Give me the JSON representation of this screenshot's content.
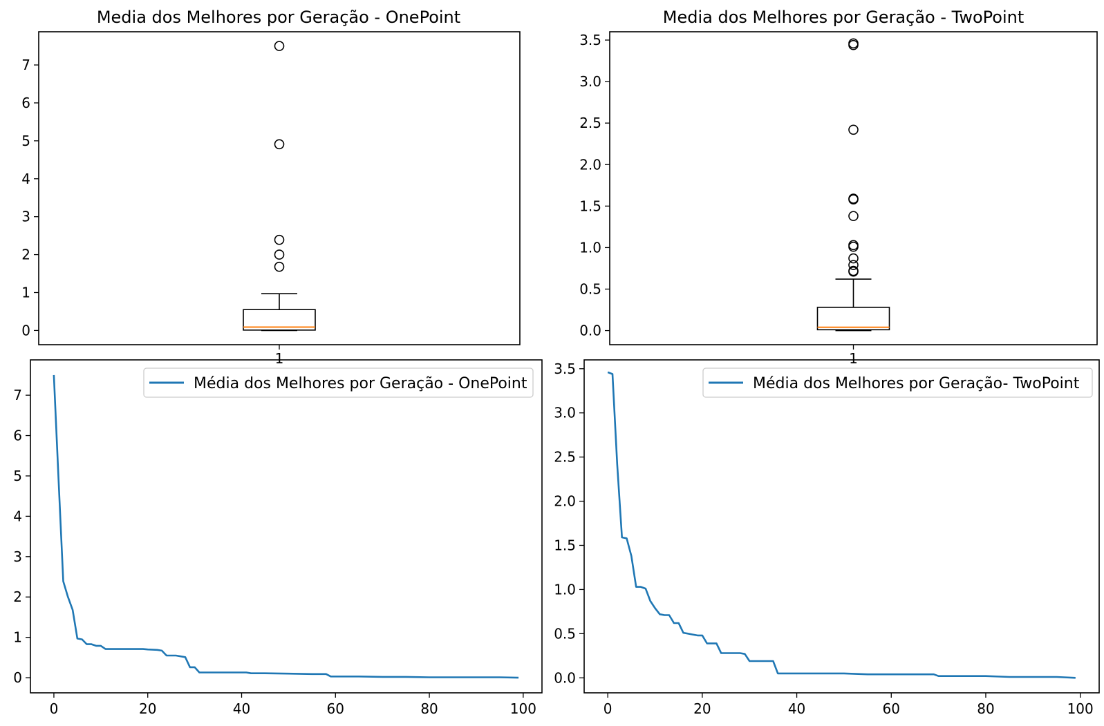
{
  "chart_data": [
    {
      "type": "box",
      "title": "Media dos Melhores por Geração - OnePoint",
      "xlabel": "",
      "ylabel": "",
      "categories": [
        "1"
      ],
      "ylim": [
        -0.375,
        7.875
      ],
      "yticks": [
        0,
        1,
        2,
        3,
        4,
        5,
        6,
        7
      ],
      "ytick_labels": [
        "0",
        "1",
        "2",
        "3",
        "4",
        "5",
        "6",
        "7"
      ],
      "box": {
        "whisker_low": 0.0,
        "q1": 0.01,
        "median": 0.09,
        "q3": 0.55,
        "whisker_high": 0.97
      },
      "outliers": [
        7.5,
        4.91,
        2.39,
        2.0,
        1.68
      ],
      "colors": {
        "box": "#000000",
        "median": "#ff7f0e"
      }
    },
    {
      "type": "box",
      "title": "Media dos Melhores por Geração - TwoPoint",
      "xlabel": "",
      "ylabel": "",
      "categories": [
        "1"
      ],
      "ylim": [
        -0.17,
        3.6
      ],
      "yticks": [
        0.0,
        0.5,
        1.0,
        1.5,
        2.0,
        2.5,
        3.0,
        3.5
      ],
      "ytick_labels": [
        "0.0",
        "0.5",
        "1.0",
        "1.5",
        "2.0",
        "2.5",
        "3.0",
        "3.5"
      ],
      "box": {
        "whisker_low": 0.0,
        "q1": 0.01,
        "median": 0.04,
        "q3": 0.28,
        "whisker_high": 0.62
      },
      "outliers": [
        3.46,
        3.44,
        2.42,
        1.59,
        1.58,
        1.38,
        1.03,
        1.01,
        0.87,
        0.79,
        0.72,
        0.71
      ],
      "colors": {
        "box": "#000000",
        "median": "#ff7f0e"
      }
    },
    {
      "type": "line",
      "title": "",
      "xlabel": "",
      "ylabel": "",
      "xlim": [
        -5,
        104
      ],
      "ylim": [
        -0.375,
        7.875
      ],
      "xticks": [
        0,
        20,
        40,
        60,
        80,
        100
      ],
      "xtick_labels": [
        "0",
        "20",
        "40",
        "60",
        "80",
        "100"
      ],
      "yticks": [
        0,
        1,
        2,
        3,
        4,
        5,
        6,
        7
      ],
      "ytick_labels": [
        "0",
        "1",
        "2",
        "3",
        "4",
        "5",
        "6",
        "7"
      ],
      "legend_position": "top-right",
      "series": [
        {
          "name": "Média dos Melhores por Geração - OnePoint",
          "color": "#1f77b4",
          "x": [
            0,
            1,
            2,
            3,
            4,
            5,
            6,
            7,
            8,
            9,
            10,
            11,
            12,
            15,
            19,
            20,
            22,
            23,
            24,
            26,
            28,
            29,
            30,
            31,
            35,
            38,
            41,
            42,
            45,
            50,
            55,
            58,
            59,
            60,
            65,
            70,
            75,
            80,
            85,
            90,
            95,
            99
          ],
          "y": [
            7.5,
            4.91,
            2.39,
            2.0,
            1.68,
            0.97,
            0.95,
            0.83,
            0.83,
            0.79,
            0.79,
            0.71,
            0.71,
            0.71,
            0.71,
            0.7,
            0.69,
            0.67,
            0.55,
            0.55,
            0.51,
            0.26,
            0.26,
            0.13,
            0.13,
            0.13,
            0.13,
            0.11,
            0.11,
            0.1,
            0.09,
            0.09,
            0.03,
            0.03,
            0.03,
            0.02,
            0.02,
            0.01,
            0.01,
            0.01,
            0.01,
            0.0
          ]
        }
      ]
    },
    {
      "type": "line",
      "title": "",
      "xlabel": "",
      "ylabel": "",
      "xlim": [
        -5,
        104
      ],
      "ylim": [
        -0.17,
        3.6
      ],
      "xticks": [
        0,
        20,
        40,
        60,
        80,
        100
      ],
      "xtick_labels": [
        "0",
        "20",
        "40",
        "60",
        "80",
        "100"
      ],
      "yticks": [
        0.0,
        0.5,
        1.0,
        1.5,
        2.0,
        2.5,
        3.0,
        3.5
      ],
      "ytick_labels": [
        "0.0",
        "0.5",
        "1.0",
        "1.5",
        "2.0",
        "2.5",
        "3.0",
        "3.5"
      ],
      "legend_position": "top-right",
      "series": [
        {
          "name": "Média dos Melhores por Geração- TwoPoint",
          "color": "#1f77b4",
          "x": [
            0,
            1,
            2,
            3,
            4,
            5,
            6,
            7,
            8,
            9,
            10,
            11,
            12,
            13,
            14,
            15,
            16,
            17,
            18,
            19,
            20,
            21,
            22,
            23,
            24,
            25,
            26,
            27,
            28,
            29,
            30,
            31,
            32,
            33,
            34,
            35,
            36,
            37,
            40,
            45,
            50,
            55,
            60,
            65,
            69,
            70,
            75,
            80,
            85,
            90,
            95,
            99
          ],
          "y": [
            3.46,
            3.44,
            2.42,
            1.59,
            1.58,
            1.38,
            1.03,
            1.03,
            1.01,
            0.87,
            0.79,
            0.72,
            0.71,
            0.71,
            0.62,
            0.62,
            0.51,
            0.5,
            0.49,
            0.48,
            0.48,
            0.39,
            0.39,
            0.39,
            0.28,
            0.28,
            0.28,
            0.28,
            0.28,
            0.27,
            0.19,
            0.19,
            0.19,
            0.19,
            0.19,
            0.19,
            0.05,
            0.05,
            0.05,
            0.05,
            0.05,
            0.04,
            0.04,
            0.04,
            0.04,
            0.02,
            0.02,
            0.02,
            0.01,
            0.01,
            0.01,
            0.0
          ]
        }
      ]
    }
  ]
}
